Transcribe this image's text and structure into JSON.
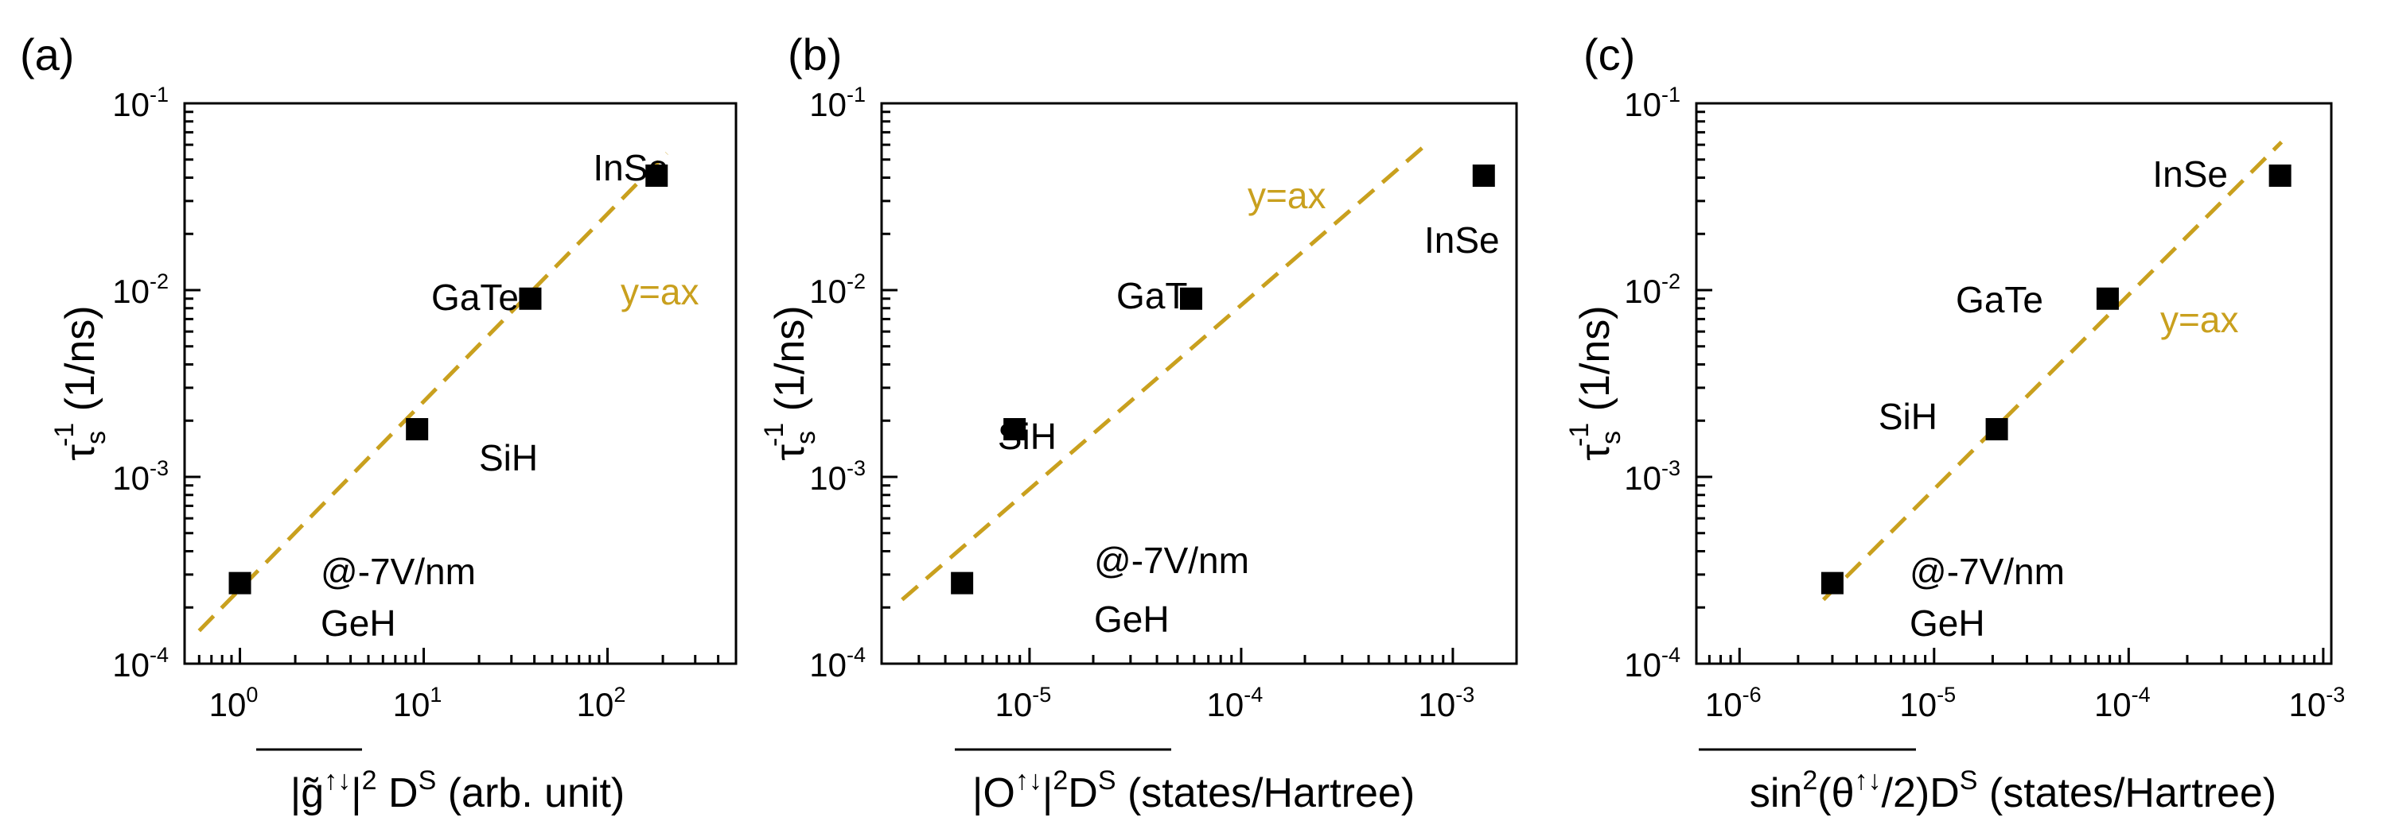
{
  "accent": "#C9A01E",
  "chart_data": [
    {
      "type": "scatter",
      "panel": "(a)",
      "xscale": "log",
      "yscale": "log",
      "xlim": [
        0.5,
        500
      ],
      "ylim": [
        0.0001,
        0.1
      ],
      "xticks": [
        {
          "base": "10",
          "exp": "0",
          "v": 1
        },
        {
          "base": "10",
          "exp": "1",
          "v": 10
        },
        {
          "base": "10",
          "exp": "2",
          "v": 100
        }
      ],
      "yticks": [
        {
          "base": "10",
          "exp": "-4",
          "v": 0.0001
        },
        {
          "base": "10",
          "exp": "-3",
          "v": 0.001
        },
        {
          "base": "10",
          "exp": "-2",
          "v": 0.01
        },
        {
          "base": "10",
          "exp": "-1",
          "v": 0.1
        }
      ],
      "xlabel": {
        "pre": "|g̃",
        "sup1": "↑↓",
        "mid": "|",
        "sup2": "2",
        "post": " D",
        "sup3": "S",
        "tail": " (arb. unit)"
      },
      "ylabel": {
        "tau": "τ",
        "sub": "s",
        "sup": "-1",
        "post": " (1/ns)"
      },
      "points": [
        {
          "name": "GeH",
          "note": "@-7V/nm",
          "x": 1.0,
          "y": 0.00027
        },
        {
          "name": "SiH",
          "x": 9.2,
          "y": 0.0018
        },
        {
          "name": "GaTe",
          "x": 38,
          "y": 0.009
        },
        {
          "name": "InSe",
          "x": 185,
          "y": 0.041
        }
      ],
      "fit": {
        "label": "y=ax",
        "x": [
          0.6,
          210
        ],
        "y": [
          0.00015,
          0.054
        ]
      }
    },
    {
      "type": "scatter",
      "panel": "(b)",
      "xscale": "log",
      "yscale": "log",
      "xlim": [
        2e-06,
        0.002
      ],
      "ylim": [
        0.0001,
        0.1
      ],
      "xticks": [
        {
          "base": "10",
          "exp": "-5",
          "v": 1e-05
        },
        {
          "base": "10",
          "exp": "-4",
          "v": 0.0001
        },
        {
          "base": "10",
          "exp": "-3",
          "v": 0.001
        }
      ],
      "yticks": [
        {
          "base": "10",
          "exp": "-4",
          "v": 0.0001
        },
        {
          "base": "10",
          "exp": "-3",
          "v": 0.001
        },
        {
          "base": "10",
          "exp": "-2",
          "v": 0.01
        },
        {
          "base": "10",
          "exp": "-1",
          "v": 0.1
        }
      ],
      "xlabel": {
        "pre": "|O",
        "sup1": "↑↓",
        "mid": "|",
        "sup2": "2",
        "post": "D",
        "sup3": "S",
        "tail": " (states/Hartree)"
      },
      "ylabel": {
        "tau": "τ",
        "sub": "s",
        "sup": "-1",
        "post": " (1/ns)"
      },
      "points": [
        {
          "name": "GeH",
          "note": "@-7V/nm",
          "x": 4.8e-06,
          "y": 0.00027
        },
        {
          "name": "SiH",
          "x": 8.5e-06,
          "y": 0.0018
        },
        {
          "name": "GaTe",
          "x": 5.8e-05,
          "y": 0.009
        },
        {
          "name": "InSe",
          "x": 0.0014,
          "y": 0.041
        }
      ],
      "fit": {
        "label": "y=ax",
        "x": [
          2.5e-06,
          0.00072
        ],
        "y": [
          0.00022,
          0.058
        ]
      }
    },
    {
      "type": "scatter",
      "panel": "(c)",
      "xscale": "log",
      "yscale": "log",
      "xlim": [
        6e-07,
        0.0011
      ],
      "ylim": [
        0.0001,
        0.1
      ],
      "xticks": [
        {
          "base": "10",
          "exp": "-6",
          "v": 1e-06
        },
        {
          "base": "10",
          "exp": "-5",
          "v": 1e-05
        },
        {
          "base": "10",
          "exp": "-4",
          "v": 0.0001
        },
        {
          "base": "10",
          "exp": "-3",
          "v": 0.001
        }
      ],
      "yticks": [
        {
          "base": "10",
          "exp": "-4",
          "v": 0.0001
        },
        {
          "base": "10",
          "exp": "-3",
          "v": 0.001
        },
        {
          "base": "10",
          "exp": "-2",
          "v": 0.01
        },
        {
          "base": "10",
          "exp": "-1",
          "v": 0.1
        }
      ],
      "xlabel": {
        "pre": "sin",
        "sup1": "2",
        "mid": "(θ",
        "sup2": "↑↓",
        "post": "/2)D",
        "sup3": "S",
        "tail": " (states/Hartree)"
      },
      "ylabel": {
        "tau": "τ",
        "sub": "s",
        "sup": "-1",
        "post": " (1/ns)"
      },
      "points": [
        {
          "name": "GeH",
          "note": "@-7V/nm",
          "x": 3e-06,
          "y": 0.00027
        },
        {
          "name": "SiH",
          "x": 2.1e-05,
          "y": 0.0018
        },
        {
          "name": "GaTe",
          "x": 7.8e-05,
          "y": 0.009
        },
        {
          "name": "InSe",
          "x": 0.0006,
          "y": 0.041
        }
      ],
      "fit": {
        "label": "y=ax",
        "x": [
          2.7e-06,
          0.00061
        ],
        "y": [
          0.00022,
          0.062
        ]
      }
    }
  ]
}
